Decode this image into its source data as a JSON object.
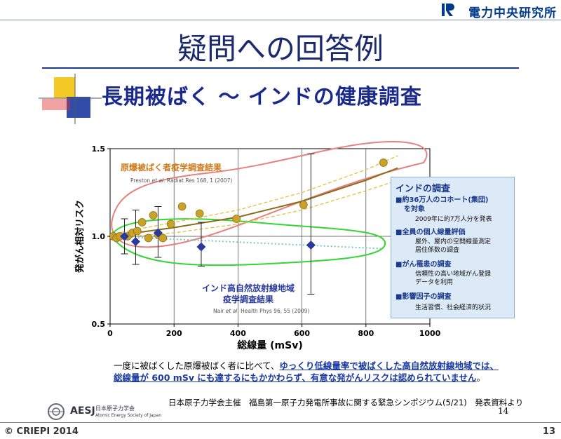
{
  "header": {
    "org_name": "電力中央研究所"
  },
  "slide": {
    "title": "疑問への回答例",
    "subtitle": "長期被ばく ～ インドの健康調査"
  },
  "chart_data": {
    "type": "scatter",
    "xlabel": "総線量 (mSv)",
    "ylabel": "発がん相対リスク",
    "xlim": [
      0,
      1000
    ],
    "ylim": [
      0.5,
      1.5
    ],
    "x_ticks": [
      "0",
      "200",
      "400",
      "600",
      "800",
      "1000"
    ],
    "y_ticks": [
      "0.5",
      "1.0",
      "1.5"
    ],
    "series": [
      {
        "name": "原爆被ばく者疫学調査結果",
        "points": [
          [
            10,
            1.0
          ],
          [
            20,
            0.99
          ],
          [
            30,
            1.0
          ],
          [
            55,
            1.0
          ],
          [
            70,
            1.02
          ],
          [
            85,
            1.03
          ],
          [
            100,
            1.08
          ],
          [
            120,
            0.99
          ],
          [
            135,
            1.12
          ],
          [
            150,
            1.01
          ],
          [
            165,
            0.99
          ],
          [
            190,
            1.07
          ],
          [
            225,
            1.17
          ],
          [
            280,
            1.13
          ],
          [
            395,
            1.1
          ],
          [
            605,
            1.18
          ],
          [
            855,
            1.42
          ]
        ]
      },
      {
        "name": "インド高自然放射線地域 疫学調査結果",
        "points": [
          [
            45,
            1.0
          ],
          [
            80,
            0.97
          ],
          [
            150,
            1.02
          ],
          [
            285,
            0.94
          ],
          [
            628,
            0.95
          ]
        ],
        "errors": [
          [
            45,
            0.9,
            1.1
          ],
          [
            80,
            0.84,
            1.15
          ],
          [
            150,
            0.88,
            1.17
          ],
          [
            285,
            0.83,
            1.08
          ],
          [
            628,
            0.67,
            1.47
          ]
        ]
      }
    ],
    "annotations": {
      "abomb_label": "原爆被ばく者疫学調査結果",
      "abomb_cite_a": "Preston",
      "abomb_cite_b": "et al",
      "abomb_cite_c": ". Radiat Res 168, 1 (2007)",
      "india_label_1": "インド高自然放射線地域",
      "india_label_2": "疫学調査結果",
      "india_cite_a": "Nair",
      "india_cite_b": "et al",
      "india_cite_c": ". Health Phys 96, 55 (2009)"
    },
    "colors": {
      "abomb": "#c9a227",
      "india": "#2b3a9c",
      "fit": "#8a6d1a",
      "fit_ci": "#e2c23a",
      "india_fit": "#79c9c4",
      "outline_red": "#e88080",
      "outline_green": "#33d633"
    }
  },
  "info_box": {
    "title": "インドの調査",
    "items": [
      {
        "label": "■約36万人のコホート(集団)",
        "label2": "を対象",
        "sub": [
          "2009年に約7万人分を発表"
        ]
      },
      {
        "label": "■全員の個人線量評価",
        "sub": [
          "屋外、屋内の空間線量測定",
          "居住係数の調査"
        ]
      },
      {
        "label": "■がん罹患の調査",
        "sub": [
          "信頼性の高い地域がん登録",
          "データを利用"
        ]
      },
      {
        "label": "■影響因子の調査",
        "sub": [
          "生活習慣、社会経済的状況"
        ]
      }
    ]
  },
  "caption": {
    "p1": "一度に被ばくした原爆被ばく者に比べて、",
    "p2": "ゆっくり低線量率で被ばくした高自然放射線地域では、総線量が 600 mSv にも達するにもかかわらず、有意な発がんリスクは認められていません",
    "p3": "。"
  },
  "source": "日本原子力学会主催　福島第一原子力発電所事故に関する緊急シンポジウム(5/21)　発表資料より",
  "page_small": "14",
  "aesj": {
    "en": "AESJ",
    "jp1": "日本原子力学会",
    "jp2": "Atomic Energy Society of Japan"
  },
  "footer": {
    "copyright": "© CRIEPI 2014",
    "page": "13"
  }
}
